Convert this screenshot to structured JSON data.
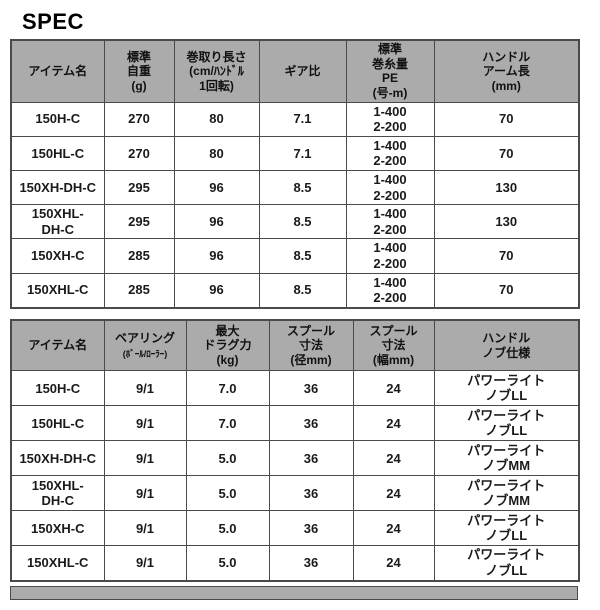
{
  "title": "SPEC",
  "colors": {
    "header_bg": "#ababab",
    "border": "#4a4a4a",
    "text": "#1a1a1a",
    "page_bg": "#ffffff"
  },
  "spec_table_main": {
    "headers": [
      {
        "lines": [
          "アイテム名"
        ]
      },
      {
        "lines": [
          "標準",
          "自重",
          "(g)"
        ]
      },
      {
        "lines": [
          "巻取り長さ",
          "(cm/ﾊﾝﾄﾞﾙ",
          "1回転)"
        ]
      },
      {
        "lines": [
          "ギア比"
        ]
      },
      {
        "lines": [
          "標準",
          "巻糸量",
          "PE",
          "(号-m)"
        ]
      },
      {
        "lines": [
          "ハンドル",
          "アーム長",
          "(mm)"
        ]
      }
    ],
    "rows": [
      [
        [
          "150H-C"
        ],
        [
          "270"
        ],
        [
          "80"
        ],
        [
          "7.1"
        ],
        [
          "1-400",
          "2-200"
        ],
        [
          "70"
        ]
      ],
      [
        [
          "150HL-C"
        ],
        [
          "270"
        ],
        [
          "80"
        ],
        [
          "7.1"
        ],
        [
          "1-400",
          "2-200"
        ],
        [
          "70"
        ]
      ],
      [
        [
          "150XH-DH-C"
        ],
        [
          "295"
        ],
        [
          "96"
        ],
        [
          "8.5"
        ],
        [
          "1-400",
          "2-200"
        ],
        [
          "130"
        ]
      ],
      [
        [
          "150XHL-",
          "DH-C"
        ],
        [
          "295"
        ],
        [
          "96"
        ],
        [
          "8.5"
        ],
        [
          "1-400",
          "2-200"
        ],
        [
          "130"
        ]
      ],
      [
        [
          "150XH-C"
        ],
        [
          "285"
        ],
        [
          "96"
        ],
        [
          "8.5"
        ],
        [
          "1-400",
          "2-200"
        ],
        [
          "70"
        ]
      ],
      [
        [
          "150XHL-C"
        ],
        [
          "285"
        ],
        [
          "96"
        ],
        [
          "8.5"
        ],
        [
          "1-400",
          "2-200"
        ],
        [
          "70"
        ]
      ]
    ]
  },
  "spec_table_detail": {
    "headers": [
      {
        "lines": [
          "アイテム名"
        ]
      },
      {
        "lines": [
          "ベアリング",
          "(ﾎﾞｰﾙ/ﾛｰﾗｰ)"
        ],
        "small": [
          1
        ]
      },
      {
        "lines": [
          "最大",
          "ドラグ力",
          "(kg)"
        ]
      },
      {
        "lines": [
          "スプール",
          "寸法",
          "(径mm)"
        ]
      },
      {
        "lines": [
          "スプール",
          "寸法",
          "(幅mm)"
        ]
      },
      {
        "lines": [
          "ハンドル",
          "ノブ仕様"
        ]
      }
    ],
    "rows": [
      [
        [
          "150H-C"
        ],
        [
          "9/1"
        ],
        [
          "7.0"
        ],
        [
          "36"
        ],
        [
          "24"
        ],
        [
          "パワーライト",
          "ノブLL"
        ]
      ],
      [
        [
          "150HL-C"
        ],
        [
          "9/1"
        ],
        [
          "7.0"
        ],
        [
          "36"
        ],
        [
          "24"
        ],
        [
          "パワーライト",
          "ノブLL"
        ]
      ],
      [
        [
          "150XH-DH-C"
        ],
        [
          "9/1"
        ],
        [
          "5.0"
        ],
        [
          "36"
        ],
        [
          "24"
        ],
        [
          "パワーライト",
          "ノブMM"
        ]
      ],
      [
        [
          "150XHL-",
          "DH-C"
        ],
        [
          "9/1"
        ],
        [
          "5.0"
        ],
        [
          "36"
        ],
        [
          "24"
        ],
        [
          "パワーライト",
          "ノブMM"
        ]
      ],
      [
        [
          "150XH-C"
        ],
        [
          "9/1"
        ],
        [
          "5.0"
        ],
        [
          "36"
        ],
        [
          "24"
        ],
        [
          "パワーライト",
          "ノブLL"
        ]
      ],
      [
        [
          "150XHL-C"
        ],
        [
          "9/1"
        ],
        [
          "5.0"
        ],
        [
          "36"
        ],
        [
          "24"
        ],
        [
          "パワーライト",
          "ノブLL"
        ]
      ]
    ]
  }
}
